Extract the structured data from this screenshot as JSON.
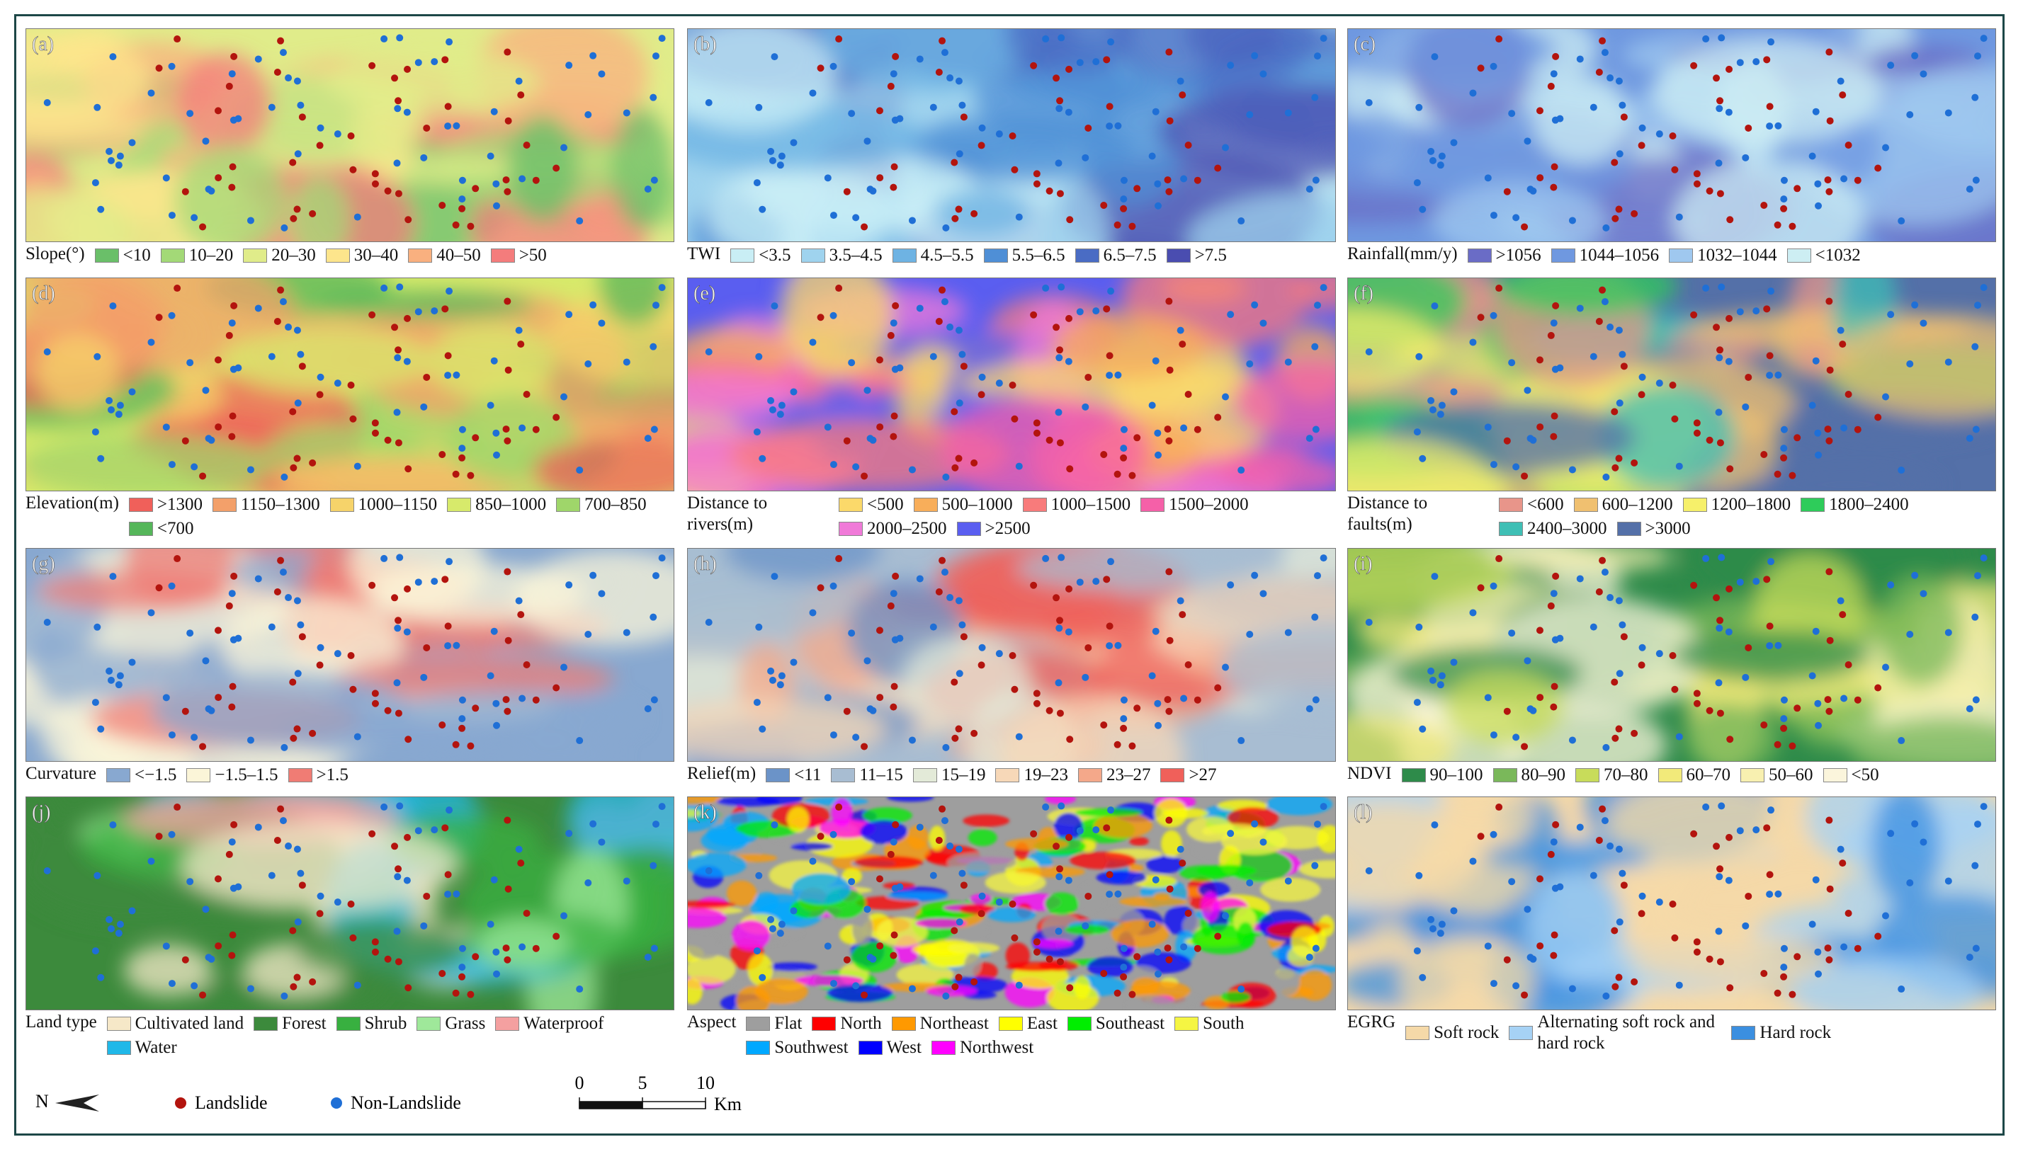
{
  "panels": [
    {
      "label": "(a)",
      "legend_title": "Slope(°)",
      "legend": [
        {
          "label": "<10",
          "color": "#6abf69"
        },
        {
          "label": "10–20",
          "color": "#a3d977"
        },
        {
          "label": "20–30",
          "color": "#e0ec8a"
        },
        {
          "label": "30–40",
          "color": "#fde58c"
        },
        {
          "label": "40–50",
          "color": "#f9b07f"
        },
        {
          "label": ">50",
          "color": "#f47c7c"
        }
      ]
    },
    {
      "label": "(b)",
      "legend_title": "TWI",
      "legend": [
        {
          "label": "<3.5",
          "color": "#c9eef5"
        },
        {
          "label": "3.5–4.5",
          "color": "#9fd3ee"
        },
        {
          "label": "4.5–5.5",
          "color": "#6eb3e3"
        },
        {
          "label": "5.5–6.5",
          "color": "#4f8fd6"
        },
        {
          "label": "6.5–7.5",
          "color": "#4a6cc4"
        },
        {
          "label": ">7.5",
          "color": "#4a4db0"
        }
      ]
    },
    {
      "label": "(c)",
      "legend_title": "Rainfall(mm/y)",
      "legend": [
        {
          "label": ">1056",
          "color": "#6a6cc6"
        },
        {
          "label": "1044–1056",
          "color": "#6f98e0"
        },
        {
          "label": "1032–1044",
          "color": "#9fc8ef"
        },
        {
          "label": "<1032",
          "color": "#cdeef3"
        }
      ]
    },
    {
      "label": "(d)",
      "legend_title": "Elevation(m)",
      "legend": [
        {
          "label": ">1300",
          "color": "#f0605a"
        },
        {
          "label": "1150–1300",
          "color": "#f3a06a"
        },
        {
          "label": "1000–1150",
          "color": "#f6d36a"
        },
        {
          "label": "850–1000",
          "color": "#d7ea6b"
        },
        {
          "label": "700–850",
          "color": "#9fd66a"
        },
        {
          "label": "<700",
          "color": "#55b65a"
        }
      ]
    },
    {
      "label": "(e)",
      "legend_title": "Distance to rivers(m)",
      "legend": [
        {
          "label": "<500",
          "color": "#fbd96a"
        },
        {
          "label": "500–1000",
          "color": "#f8ae5a"
        },
        {
          "label": "1000–1500",
          "color": "#f87b7b"
        },
        {
          "label": "1500–2000",
          "color": "#f560a8"
        },
        {
          "label": "2000–2500",
          "color": "#f07ad8"
        },
        {
          "label": ">2500",
          "color": "#5a5ef0"
        }
      ]
    },
    {
      "label": "(f)",
      "legend_title": "Distance to faults(m)",
      "legend": [
        {
          "label": "<600",
          "color": "#e8958a"
        },
        {
          "label": "600–1200",
          "color": "#f0c070"
        },
        {
          "label": "1200–1800",
          "color": "#f6f06a"
        },
        {
          "label": "1800–2400",
          "color": "#2ecc5a"
        },
        {
          "label": "2400–3000",
          "color": "#3fbfb5"
        },
        {
          "label": ">3000",
          "color": "#5470a8"
        }
      ]
    },
    {
      "label": "(g)",
      "legend_title": "Curvature",
      "legend": [
        {
          "label": "<−1.5",
          "color": "#88a8d0"
        },
        {
          "label": "−1.5–1.5",
          "color": "#fbf5d8"
        },
        {
          "label": ">1.5",
          "color": "#f07c74"
        }
      ]
    },
    {
      "label": "(h)",
      "legend_title": "Relief(m)",
      "legend": [
        {
          "label": "<11",
          "color": "#6b93c8"
        },
        {
          "label": "11–15",
          "color": "#a8bdd2"
        },
        {
          "label": "15–19",
          "color": "#e3ead8"
        },
        {
          "label": "19–23",
          "color": "#f7d8b8"
        },
        {
          "label": "23–27",
          "color": "#f4a88a"
        },
        {
          "label": ">27",
          "color": "#f0605a"
        }
      ]
    },
    {
      "label": "(i)",
      "legend_title": "NDVI",
      "legend": [
        {
          "label": "90–100",
          "color": "#2e8b4a"
        },
        {
          "label": "80–90",
          "color": "#7ab85a"
        },
        {
          "label": "70–80",
          "color": "#c8dc5a"
        },
        {
          "label": "60–70",
          "color": "#f2ea7a"
        },
        {
          "label": "50–60",
          "color": "#f8f0b0"
        },
        {
          "label": "<50",
          "color": "#fbf5dc"
        }
      ]
    },
    {
      "label": "(j)",
      "legend_title": "Land type",
      "legend": [
        {
          "label": "Cultivated land",
          "color": "#f6e8c8"
        },
        {
          "label": "Forest",
          "color": "#3c8a3c"
        },
        {
          "label": "Shrub",
          "color": "#38b040"
        },
        {
          "label": "Grass",
          "color": "#9fe89a"
        },
        {
          "label": "Waterproof",
          "color": "#f4a0a0"
        },
        {
          "label": "Water",
          "color": "#20b8e8"
        }
      ]
    },
    {
      "label": "(k)",
      "legend_title": "Aspect",
      "legend": [
        {
          "label": "Flat",
          "color": "#9e9e9e"
        },
        {
          "label": "North",
          "color": "#ff0000"
        },
        {
          "label": "Northeast",
          "color": "#ff9900"
        },
        {
          "label": "East",
          "color": "#ffff00"
        },
        {
          "label": "Southeast",
          "color": "#00ee00"
        },
        {
          "label": "South",
          "color": "#f5f542"
        },
        {
          "label": "Southwest",
          "color": "#00a8ff"
        },
        {
          "label": "West",
          "color": "#0000ff"
        },
        {
          "label": "Northwest",
          "color": "#ff00ff"
        }
      ]
    },
    {
      "label": "(l)",
      "legend_title": "EGRG",
      "legend": [
        {
          "label": "Soft rock",
          "color": "#f5d9a8"
        },
        {
          "label": "Alternating soft rock and hard rock",
          "color": "#a6d2f5"
        },
        {
          "label": "Hard rock",
          "color": "#3b8fe0"
        }
      ]
    }
  ],
  "footer": {
    "north": "N",
    "points": [
      {
        "label": "Landslide",
        "color": "#b3140e"
      },
      {
        "label": "Non-Landslide",
        "color": "#1f6fd6"
      }
    ],
    "scale_bar": {
      "ticks": [
        0,
        5,
        10
      ],
      "unit": "Km"
    }
  }
}
